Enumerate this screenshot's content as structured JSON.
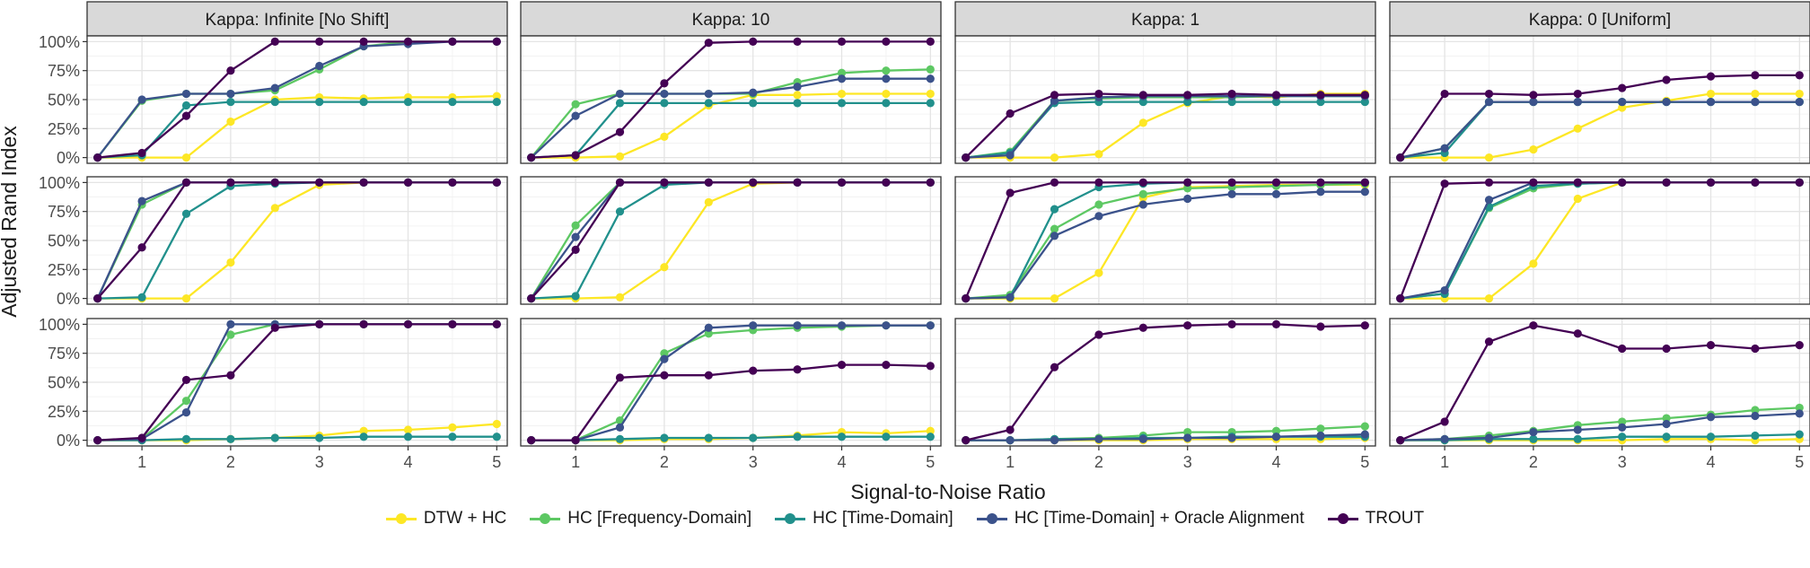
{
  "chart_data": {
    "type": "line",
    "facet_columns": [
      "Kappa: Infinite [No Shift]",
      "Kappa: 10",
      "Kappa: 1",
      "Kappa: 0 [Uniform]"
    ],
    "xlabel": "Signal-to-Noise Ratio",
    "ylabel": "Adjusted Rand Index",
    "x": [
      0.5,
      1,
      1.5,
      2,
      2.5,
      3,
      3.5,
      4,
      4.5,
      5
    ],
    "xlim": [
      0.5,
      5
    ],
    "ylim": [
      0,
      1
    ],
    "x_ticks": [
      1,
      2,
      3,
      4,
      5
    ],
    "x_tick_labels": [
      "1",
      "2",
      "3",
      "4",
      "5"
    ],
    "y_ticks": [
      0,
      0.25,
      0.5,
      0.75,
      1.0
    ],
    "y_tick_labels": [
      "0%",
      "25%",
      "50%",
      "75%",
      "100%"
    ],
    "grid": true,
    "legend_position": "bottom",
    "series": [
      {
        "name": "DTW + HC",
        "color": "#FDE725"
      },
      {
        "name": "HC [Frequency-Domain]",
        "color": "#5DC863"
      },
      {
        "name": "HC [Time-Domain]",
        "color": "#21908C"
      },
      {
        "name": "HC [Time-Domain] + Oracle Alignment",
        "color": "#3B528B"
      },
      {
        "name": "TROUT",
        "color": "#440154"
      }
    ],
    "panels": [
      [
        {
          "DTW + HC": [
            0,
            0,
            0,
            0.31,
            0.5,
            0.52,
            0.51,
            0.52,
            0.52,
            0.53
          ],
          "HC [Frequency-Domain]": [
            0,
            0.49,
            0.55,
            0.55,
            0.58,
            0.76,
            0.96,
            1.0,
            1.0,
            1.0
          ],
          "HC [Time-Domain]": [
            0,
            0.02,
            0.45,
            0.48,
            0.48,
            0.48,
            0.48,
            0.48,
            0.48,
            0.48
          ],
          "HC [Time-Domain] + Oracle Alignment": [
            0,
            0.5,
            0.55,
            0.55,
            0.6,
            0.79,
            0.96,
            0.98,
            1.0,
            1.0
          ],
          "TROUT": [
            0,
            0.04,
            0.36,
            0.75,
            1.0,
            1.0,
            1.0,
            1.0,
            1.0,
            1.0
          ]
        },
        {
          "DTW + HC": [
            0,
            0,
            0.01,
            0.18,
            0.45,
            0.54,
            0.54,
            0.55,
            0.55,
            0.55
          ],
          "HC [Frequency-Domain]": [
            0,
            0.46,
            0.55,
            0.55,
            0.55,
            0.55,
            0.65,
            0.73,
            0.75,
            0.76
          ],
          "HC [Time-Domain]": [
            0,
            0.02,
            0.47,
            0.47,
            0.47,
            0.47,
            0.47,
            0.47,
            0.47,
            0.47
          ],
          "HC [Time-Domain] + Oracle Alignment": [
            0,
            0.36,
            0.55,
            0.55,
            0.55,
            0.56,
            0.61,
            0.68,
            0.68,
            0.68
          ],
          "TROUT": [
            0,
            0.02,
            0.22,
            0.64,
            0.99,
            1.0,
            1.0,
            1.0,
            1.0,
            1.0
          ]
        },
        {
          "DTW + HC": [
            0,
            0,
            0,
            0.03,
            0.3,
            0.47,
            0.53,
            0.52,
            0.55,
            0.55
          ],
          "HC [Frequency-Domain]": [
            0,
            0.05,
            0.49,
            0.51,
            0.52,
            0.52,
            0.52,
            0.53,
            0.53,
            0.53
          ],
          "HC [Time-Domain]": [
            0,
            0.04,
            0.47,
            0.48,
            0.48,
            0.48,
            0.48,
            0.48,
            0.48,
            0.48
          ],
          "HC [Time-Domain] + Oracle Alignment": [
            0,
            0.02,
            0.49,
            0.52,
            0.53,
            0.53,
            0.53,
            0.53,
            0.53,
            0.53
          ],
          "TROUT": [
            0,
            0.38,
            0.54,
            0.55,
            0.54,
            0.54,
            0.55,
            0.54,
            0.54,
            0.54
          ]
        },
        {
          "DTW + HC": [
            0,
            0,
            0,
            0.07,
            0.25,
            0.43,
            0.49,
            0.55,
            0.55,
            0.55
          ],
          "HC [Frequency-Domain]": [
            0,
            0.08,
            0.48,
            0.48,
            0.48,
            0.48,
            0.48,
            0.48,
            0.48,
            0.48
          ],
          "HC [Time-Domain]": [
            0,
            0.04,
            0.48,
            0.48,
            0.48,
            0.48,
            0.48,
            0.48,
            0.48,
            0.48
          ],
          "HC [Time-Domain] + Oracle Alignment": [
            0,
            0.08,
            0.48,
            0.48,
            0.48,
            0.48,
            0.48,
            0.48,
            0.48,
            0.48
          ],
          "TROUT": [
            0,
            0.55,
            0.55,
            0.54,
            0.55,
            0.6,
            0.67,
            0.7,
            0.71,
            0.71
          ]
        }
      ],
      [
        {
          "DTW + HC": [
            0,
            0,
            0,
            0.31,
            0.78,
            0.98,
            1.0,
            1.0,
            1.0,
            1.0
          ],
          "HC [Frequency-Domain]": [
            0,
            0.81,
            1.0,
            1.0,
            1.0,
            1.0,
            1.0,
            1.0,
            1.0,
            1.0
          ],
          "HC [Time-Domain]": [
            0,
            0.01,
            0.73,
            0.97,
            0.99,
            1.0,
            1.0,
            1.0,
            1.0,
            1.0
          ],
          "HC [Time-Domain] + Oracle Alignment": [
            0,
            0.84,
            1.0,
            1.0,
            1.0,
            1.0,
            1.0,
            1.0,
            1.0,
            1.0
          ],
          "TROUT": [
            0,
            0.44,
            1.0,
            1.0,
            1.0,
            1.0,
            1.0,
            1.0,
            1.0,
            1.0
          ]
        },
        {
          "DTW + HC": [
            0,
            0,
            0.01,
            0.27,
            0.83,
            0.99,
            1.0,
            1.0,
            1.0,
            1.0
          ],
          "HC [Frequency-Domain]": [
            0,
            0.63,
            1.0,
            1.0,
            1.0,
            1.0,
            1.0,
            1.0,
            1.0,
            1.0
          ],
          "HC [Time-Domain]": [
            0,
            0.02,
            0.75,
            0.98,
            1.0,
            1.0,
            1.0,
            1.0,
            1.0,
            1.0
          ],
          "HC [Time-Domain] + Oracle Alignment": [
            0,
            0.53,
            1.0,
            1.0,
            1.0,
            1.0,
            1.0,
            1.0,
            1.0,
            1.0
          ],
          "TROUT": [
            0,
            0.42,
            1.0,
            1.0,
            1.0,
            1.0,
            1.0,
            1.0,
            1.0,
            1.0
          ]
        },
        {
          "DTW + HC": [
            0,
            0,
            0,
            0.22,
            0.87,
            0.96,
            0.97,
            0.98,
            0.98,
            0.98
          ],
          "HC [Frequency-Domain]": [
            0,
            0.03,
            0.6,
            0.81,
            0.9,
            0.95,
            0.96,
            0.97,
            0.98,
            0.99
          ],
          "HC [Time-Domain]": [
            0,
            0.01,
            0.77,
            0.96,
            0.99,
            1.0,
            1.0,
            1.0,
            1.0,
            1.0
          ],
          "HC [Time-Domain] + Oracle Alignment": [
            0,
            0.01,
            0.54,
            0.71,
            0.81,
            0.86,
            0.9,
            0.9,
            0.92,
            0.92
          ],
          "TROUT": [
            0,
            0.91,
            1.0,
            1.0,
            1.0,
            1.0,
            1.0,
            1.0,
            1.0,
            1.0
          ]
        },
        {
          "DTW + HC": [
            0,
            0,
            0,
            0.3,
            0.86,
            1.0,
            1.0,
            1.0,
            1.0,
            1.0
          ],
          "HC [Frequency-Domain]": [
            0,
            0.04,
            0.78,
            0.95,
            0.99,
            1.0,
            1.0,
            1.0,
            1.0,
            1.0
          ],
          "HC [Time-Domain]": [
            0,
            0.04,
            0.79,
            0.97,
            0.99,
            1.0,
            1.0,
            1.0,
            1.0,
            1.0
          ],
          "HC [Time-Domain] + Oracle Alignment": [
            0,
            0.07,
            0.85,
            1.0,
            1.0,
            1.0,
            1.0,
            1.0,
            1.0,
            1.0
          ],
          "TROUT": [
            0,
            0.99,
            1.0,
            1.0,
            1.0,
            1.0,
            1.0,
            1.0,
            1.0,
            1.0
          ]
        }
      ],
      [
        {
          "DTW + HC": [
            0,
            0,
            0,
            0.01,
            0.02,
            0.04,
            0.08,
            0.09,
            0.11,
            0.14
          ],
          "HC [Frequency-Domain]": [
            0,
            0.01,
            0.34,
            0.91,
            1.0,
            1.0,
            1.0,
            1.0,
            1.0,
            1.0
          ],
          "HC [Time-Domain]": [
            0,
            0,
            0.01,
            0.01,
            0.02,
            0.02,
            0.03,
            0.03,
            0.03,
            0.03
          ],
          "HC [Time-Domain] + Oracle Alignment": [
            0,
            0.01,
            0.24,
            1.0,
            1.0,
            1.0,
            1.0,
            1.0,
            1.0,
            1.0
          ],
          "TROUT": [
            0,
            0.02,
            0.52,
            0.56,
            0.97,
            1.0,
            1.0,
            1.0,
            1.0,
            1.0
          ]
        },
        {
          "DTW + HC": [
            0,
            0,
            0,
            0.01,
            0.01,
            0.02,
            0.04,
            0.07,
            0.06,
            0.08
          ],
          "HC [Frequency-Domain]": [
            0,
            0,
            0.17,
            0.75,
            0.92,
            0.95,
            0.97,
            0.98,
            0.99,
            0.99
          ],
          "HC [Time-Domain]": [
            0,
            0,
            0.01,
            0.02,
            0.02,
            0.02,
            0.03,
            0.03,
            0.03,
            0.03
          ],
          "HC [Time-Domain] + Oracle Alignment": [
            0,
            0,
            0.11,
            0.7,
            0.97,
            0.99,
            0.99,
            0.99,
            0.99,
            0.99
          ],
          "TROUT": [
            0,
            0,
            0.54,
            0.56,
            0.56,
            0.6,
            0.61,
            0.65,
            0.65,
            0.64
          ]
        },
        {
          "DTW + HC": [
            0,
            0,
            0,
            0,
            0,
            0.01,
            0.01,
            0.01,
            0.01,
            0.02
          ],
          "HC [Frequency-Domain]": [
            0,
            0,
            0.01,
            0.02,
            0.04,
            0.07,
            0.07,
            0.08,
            0.1,
            0.12
          ],
          "HC [Time-Domain]": [
            0,
            0,
            0.01,
            0.01,
            0.02,
            0.02,
            0.03,
            0.03,
            0.03,
            0.03
          ],
          "HC [Time-Domain] + Oracle Alignment": [
            0,
            0,
            0,
            0.01,
            0.01,
            0.02,
            0.02,
            0.03,
            0.04,
            0.05
          ],
          "TROUT": [
            0,
            0.09,
            0.63,
            0.91,
            0.97,
            0.99,
            1.0,
            1.0,
            0.98,
            0.99
          ]
        },
        {
          "DTW + HC": [
            0,
            0,
            0,
            0,
            0,
            0,
            0.01,
            0.01,
            0,
            0.01
          ],
          "HC [Frequency-Domain]": [
            0,
            0.01,
            0.04,
            0.08,
            0.13,
            0.16,
            0.19,
            0.22,
            0.26,
            0.28
          ],
          "HC [Time-Domain]": [
            0,
            0,
            0.01,
            0.01,
            0.01,
            0.03,
            0.03,
            0.03,
            0.04,
            0.05
          ],
          "HC [Time-Domain] + Oracle Alignment": [
            0,
            0.01,
            0.02,
            0.07,
            0.09,
            0.11,
            0.14,
            0.2,
            0.21,
            0.23
          ],
          "TROUT": [
            0,
            0.16,
            0.85,
            0.99,
            0.92,
            0.79,
            0.79,
            0.82,
            0.79,
            0.82
          ]
        }
      ]
    ]
  }
}
